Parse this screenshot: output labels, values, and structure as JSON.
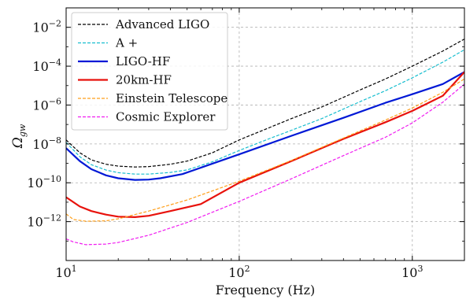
{
  "chart_data": {
    "type": "line",
    "title": "",
    "xlabel": "Frequency (Hz)",
    "ylabel_base": "Ω",
    "ylabel_sub": "gw",
    "x_scale": "log",
    "y_scale": "log",
    "xlim": [
      10,
      2000
    ],
    "ylim": [
      1e-14,
      0.1
    ],
    "grid": true,
    "legend_position": "top-left",
    "x_ticks": [
      {
        "value": 10,
        "base": "10",
        "exp": "1"
      },
      {
        "value": 100,
        "base": "10",
        "exp": "2"
      },
      {
        "value": 1000,
        "base": "10",
        "exp": "3"
      }
    ],
    "y_ticks": [
      {
        "value": 1e-12,
        "base": "10",
        "exp": "−12"
      },
      {
        "value": 1e-10,
        "base": "10",
        "exp": "−10"
      },
      {
        "value": 1e-08,
        "base": "10",
        "exp": "−8"
      },
      {
        "value": 1e-06,
        "base": "10",
        "exp": "−6"
      },
      {
        "value": 0.0001,
        "base": "10",
        "exp": "−4"
      },
      {
        "value": 0.01,
        "base": "10",
        "exp": "−2"
      }
    ],
    "series": [
      {
        "name": "Advanced LIGO",
        "color": "#000000",
        "style": "dashed",
        "width": 1.2,
        "points": [
          [
            10,
            1.6e-08
          ],
          [
            12,
            3.5e-09
          ],
          [
            14,
            1.5e-09
          ],
          [
            17,
            9e-10
          ],
          [
            20,
            7.2e-10
          ],
          [
            25,
            6.5e-10
          ],
          [
            30,
            6.8e-10
          ],
          [
            40,
            9e-10
          ],
          [
            50,
            1.3e-09
          ],
          [
            70,
            3.5e-09
          ],
          [
            100,
            1.6e-08
          ],
          [
            150,
            7e-08
          ],
          [
            200,
            2e-07
          ],
          [
            300,
            8e-07
          ],
          [
            500,
            6e-06
          ],
          [
            700,
            2.2e-05
          ],
          [
            1000,
            0.0001
          ],
          [
            1500,
            0.0006
          ],
          [
            2000,
            0.0025
          ]
        ]
      },
      {
        "name": "A +",
        "color": "#17becf",
        "style": "dashed",
        "width": 1.2,
        "points": [
          [
            10,
            1.2e-08
          ],
          [
            12,
            2.2e-09
          ],
          [
            14,
            8.5e-10
          ],
          [
            17,
            4.5e-10
          ],
          [
            20,
            3.3e-10
          ],
          [
            25,
            2.8e-10
          ],
          [
            30,
            2.8e-10
          ],
          [
            40,
            3.4e-10
          ],
          [
            50,
            4.6e-10
          ],
          [
            70,
            1.2e-09
          ],
          [
            100,
            4.6e-09
          ],
          [
            150,
            1.9e-08
          ],
          [
            200,
            5e-08
          ],
          [
            300,
            2e-07
          ],
          [
            500,
            1.5e-06
          ],
          [
            700,
            5.5e-06
          ],
          [
            1000,
            2.5e-05
          ],
          [
            1500,
            0.00016
          ],
          [
            2000,
            0.0007
          ]
        ]
      },
      {
        "name": "LIGO-HF",
        "color": "#0018d6",
        "style": "solid",
        "width": 2.2,
        "points": [
          [
            10,
            6e-09
          ],
          [
            12,
            1.3e-09
          ],
          [
            14,
            5e-10
          ],
          [
            17,
            2.4e-10
          ],
          [
            20,
            1.7e-10
          ],
          [
            25,
            1.4e-10
          ],
          [
            30,
            1.45e-10
          ],
          [
            35,
            1.7e-10
          ],
          [
            47,
            2.8e-10
          ],
          [
            100,
            2.9e-09
          ],
          [
            200,
            2.6e-08
          ],
          [
            400,
            2.2e-07
          ],
          [
            700,
            1.3e-06
          ],
          [
            1000,
            3.6e-06
          ],
          [
            1500,
            1.2e-05
          ],
          [
            2000,
            5e-05
          ]
        ]
      },
      {
        "name": "20km-HF",
        "color": "#e8120c",
        "style": "solid",
        "width": 2.2,
        "points": [
          [
            10,
            1.8e-11
          ],
          [
            12,
            6e-12
          ],
          [
            14,
            3.5e-12
          ],
          [
            17,
            2.3e-12
          ],
          [
            20,
            1.8e-12
          ],
          [
            25,
            1.7e-12
          ],
          [
            30,
            2e-12
          ],
          [
            40,
            3.5e-12
          ],
          [
            60,
            8e-12
          ],
          [
            100,
            1e-10
          ],
          [
            200,
            1.3e-09
          ],
          [
            400,
            1.8e-08
          ],
          [
            700,
            1.3e-07
          ],
          [
            1000,
            5e-07
          ],
          [
            1500,
            3e-06
          ],
          [
            2000,
            5e-05
          ]
        ]
      },
      {
        "name": "Einstein Telescope",
        "color": "#ff9f1a",
        "style": "dashed",
        "width": 1.2,
        "points": [
          [
            10,
            2.5e-12
          ],
          [
            11,
            1.3e-12
          ],
          [
            13,
            1.05e-12
          ],
          [
            17,
            1.1e-12
          ],
          [
            20,
            1.4e-12
          ],
          [
            30,
            3.5e-12
          ],
          [
            50,
            1.3e-11
          ],
          [
            100,
            1.2e-10
          ],
          [
            200,
            1.4e-09
          ],
          [
            400,
            2e-08
          ],
          [
            700,
            1.7e-07
          ],
          [
            1000,
            7e-07
          ],
          [
            1500,
            4.5e-06
          ],
          [
            2000,
            2.2e-05
          ]
        ]
      },
      {
        "name": "Cosmic Explorer",
        "color": "#f01cf0",
        "style": "dashed",
        "width": 1.2,
        "points": [
          [
            10,
            1.3e-13
          ],
          [
            11,
            9e-14
          ],
          [
            13,
            6.5e-14
          ],
          [
            17,
            7e-14
          ],
          [
            20,
            8.5e-14
          ],
          [
            30,
            2e-13
          ],
          [
            50,
            9e-13
          ],
          [
            100,
            1.1e-11
          ],
          [
            200,
            1.6e-10
          ],
          [
            400,
            2.5e-09
          ],
          [
            700,
            2.2e-08
          ],
          [
            1000,
            1.2e-07
          ],
          [
            1500,
            1.4e-06
          ],
          [
            2000,
            1.2e-05
          ]
        ]
      }
    ]
  }
}
